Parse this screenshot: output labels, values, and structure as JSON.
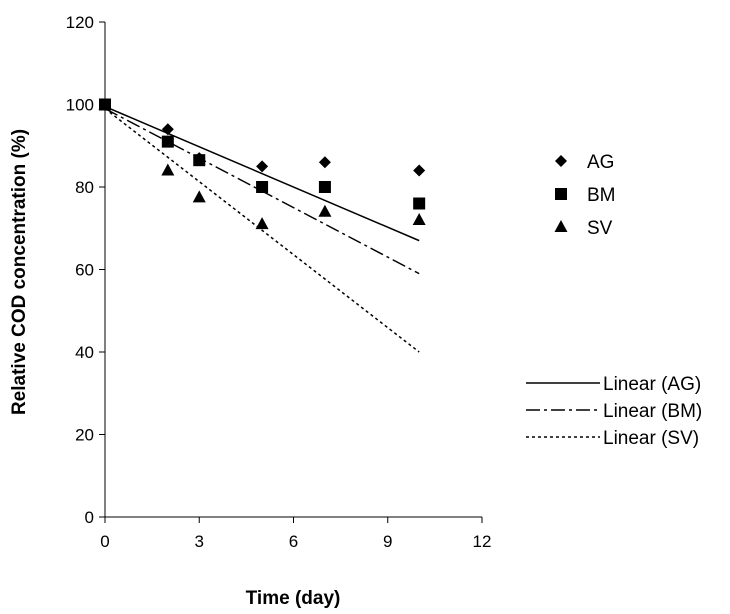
{
  "chart_data": {
    "type": "scatter",
    "title": "",
    "xlabel": "Time (day)",
    "ylabel": "Relative COD concentration (%)",
    "xlim": [
      0,
      12
    ],
    "ylim": [
      0,
      120
    ],
    "xticks": [
      "0",
      "3",
      "6",
      "9",
      "12"
    ],
    "yticks": [
      "0",
      "20",
      "40",
      "60",
      "80",
      "100",
      "120"
    ],
    "grid": false,
    "legend_position": "right",
    "series": [
      {
        "name": "AG",
        "marker": "diamond",
        "x": [
          0,
          2,
          3,
          5,
          7,
          10
        ],
        "y": [
          100,
          94,
          87,
          85,
          86,
          84
        ]
      },
      {
        "name": "BM",
        "marker": "square",
        "x": [
          0,
          2,
          3,
          5,
          7,
          10
        ],
        "y": [
          100,
          91,
          86.5,
          80,
          80,
          76
        ]
      },
      {
        "name": "SV",
        "marker": "triangle",
        "x": [
          0,
          2,
          3,
          5,
          7,
          10
        ],
        "y": [
          100,
          84,
          77.5,
          71,
          74,
          72
        ]
      }
    ],
    "trendlines": [
      {
        "name": "Linear (AG)",
        "style": "solid",
        "x": [
          0,
          10
        ],
        "y": [
          99.5,
          67
        ]
      },
      {
        "name": "Linear (BM)",
        "style": "dashdot",
        "x": [
          0,
          10
        ],
        "y": [
          99,
          59
        ]
      },
      {
        "name": "Linear (SV)",
        "style": "dotted",
        "x": [
          0,
          10
        ],
        "y": [
          99,
          40
        ]
      }
    ]
  }
}
